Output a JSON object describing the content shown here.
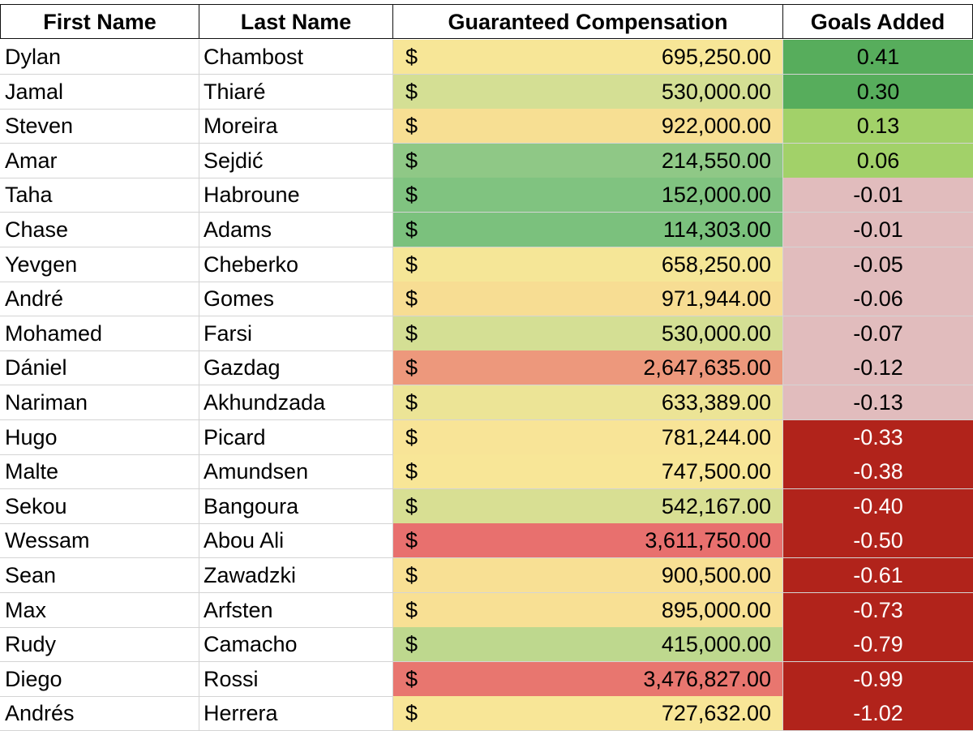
{
  "headers": {
    "first": "First Name",
    "last": "Last Name",
    "comp": "Guaranteed Compensation",
    "goals": "Goals Added"
  },
  "currency_symbol": "$",
  "rows": [
    {
      "first": "Dylan",
      "last": "Chambost",
      "comp": "695,250.00",
      "goals": "0.41",
      "comp_color": "#f7e697",
      "goals_color": "#57ad5c"
    },
    {
      "first": "Jamal",
      "last": "Thiaré",
      "comp": "530,000.00",
      "goals": "0.30",
      "comp_color": "#d4df94",
      "goals_color": "#57ad5c"
    },
    {
      "first": "Steven",
      "last": "Moreira",
      "comp": "922,000.00",
      "goals": "0.13",
      "comp_color": "#f7df93",
      "goals_color": "#a2d169"
    },
    {
      "first": "Amar",
      "last": "Sejdić",
      "comp": "214,550.00",
      "goals": "0.06",
      "comp_color": "#8fc886",
      "goals_color": "#a2d169"
    },
    {
      "first": "Taha",
      "last": "Habroune",
      "comp": "152,000.00",
      "goals": "-0.01",
      "comp_color": "#80c380",
      "goals_color": "#e1bcbd"
    },
    {
      "first": "Chase",
      "last": "Adams",
      "comp": "114,303.00",
      "goals": "-0.01",
      "comp_color": "#7bc17d",
      "goals_color": "#e1bcbd"
    },
    {
      "first": "Yevgen",
      "last": "Cheberko",
      "comp": "658,250.00",
      "goals": "-0.05",
      "comp_color": "#f5e697",
      "goals_color": "#e1bcbd"
    },
    {
      "first": "André",
      "last": "Gomes",
      "comp": "971,944.00",
      "goals": "-0.06",
      "comp_color": "#f7dd93",
      "goals_color": "#e1bcbd"
    },
    {
      "first": "Mohamed",
      "last": "Farsi",
      "comp": "530,000.00",
      "goals": "-0.07",
      "comp_color": "#d4df94",
      "goals_color": "#e1bcbd"
    },
    {
      "first": "Dániel",
      "last": "Gazdag",
      "comp": "2,647,635.00",
      "goals": "-0.12",
      "comp_color": "#ed987c",
      "goals_color": "#e1bcbd"
    },
    {
      "first": "Nariman",
      "last": "Akhundzada",
      "comp": "633,389.00",
      "goals": "-0.13",
      "comp_color": "#ece496",
      "goals_color": "#e1bcbd"
    },
    {
      "first": "Hugo",
      "last": "Picard",
      "comp": "781,244.00",
      "goals": "-0.33",
      "comp_color": "#f8e497",
      "goals_color": "#b1231b"
    },
    {
      "first": "Malte",
      "last": "Amundsen",
      "comp": "747,500.00",
      "goals": "-0.38",
      "comp_color": "#f8e697",
      "goals_color": "#b1231b"
    },
    {
      "first": "Sekou",
      "last": "Bangoura",
      "comp": "542,167.00",
      "goals": "-0.40",
      "comp_color": "#d8df93",
      "goals_color": "#b1231b"
    },
    {
      "first": "Wessam",
      "last": "Abou Ali",
      "comp": "3,611,750.00",
      "goals": "-0.50",
      "comp_color": "#e8706e",
      "goals_color": "#b1231b"
    },
    {
      "first": "Sean",
      "last": "Zawadzki",
      "comp": "900,500.00",
      "goals": "-0.61",
      "comp_color": "#f8e094",
      "goals_color": "#b1231b"
    },
    {
      "first": "Max",
      "last": "Arfsten",
      "comp": "895,000.00",
      "goals": "-0.73",
      "comp_color": "#f8e094",
      "goals_color": "#b1231b"
    },
    {
      "first": "Rudy",
      "last": "Camacho",
      "comp": "415,000.00",
      "goals": "-0.79",
      "comp_color": "#bed88e",
      "goals_color": "#b1231b"
    },
    {
      "first": "Diego",
      "last": "Rossi",
      "comp": "3,476,827.00",
      "goals": "-0.99",
      "comp_color": "#e8766f",
      "goals_color": "#b1231b"
    },
    {
      "first": "Andrés",
      "last": "Herrera",
      "comp": "727,632.00",
      "goals": "-1.02",
      "comp_color": "#f8e697",
      "goals_color": "#b1231b"
    }
  ],
  "colors": {
    "header_border": "#111111",
    "grid": "#d4d4d4",
    "text_light": "#ffffff",
    "text_dark": "#000000"
  }
}
